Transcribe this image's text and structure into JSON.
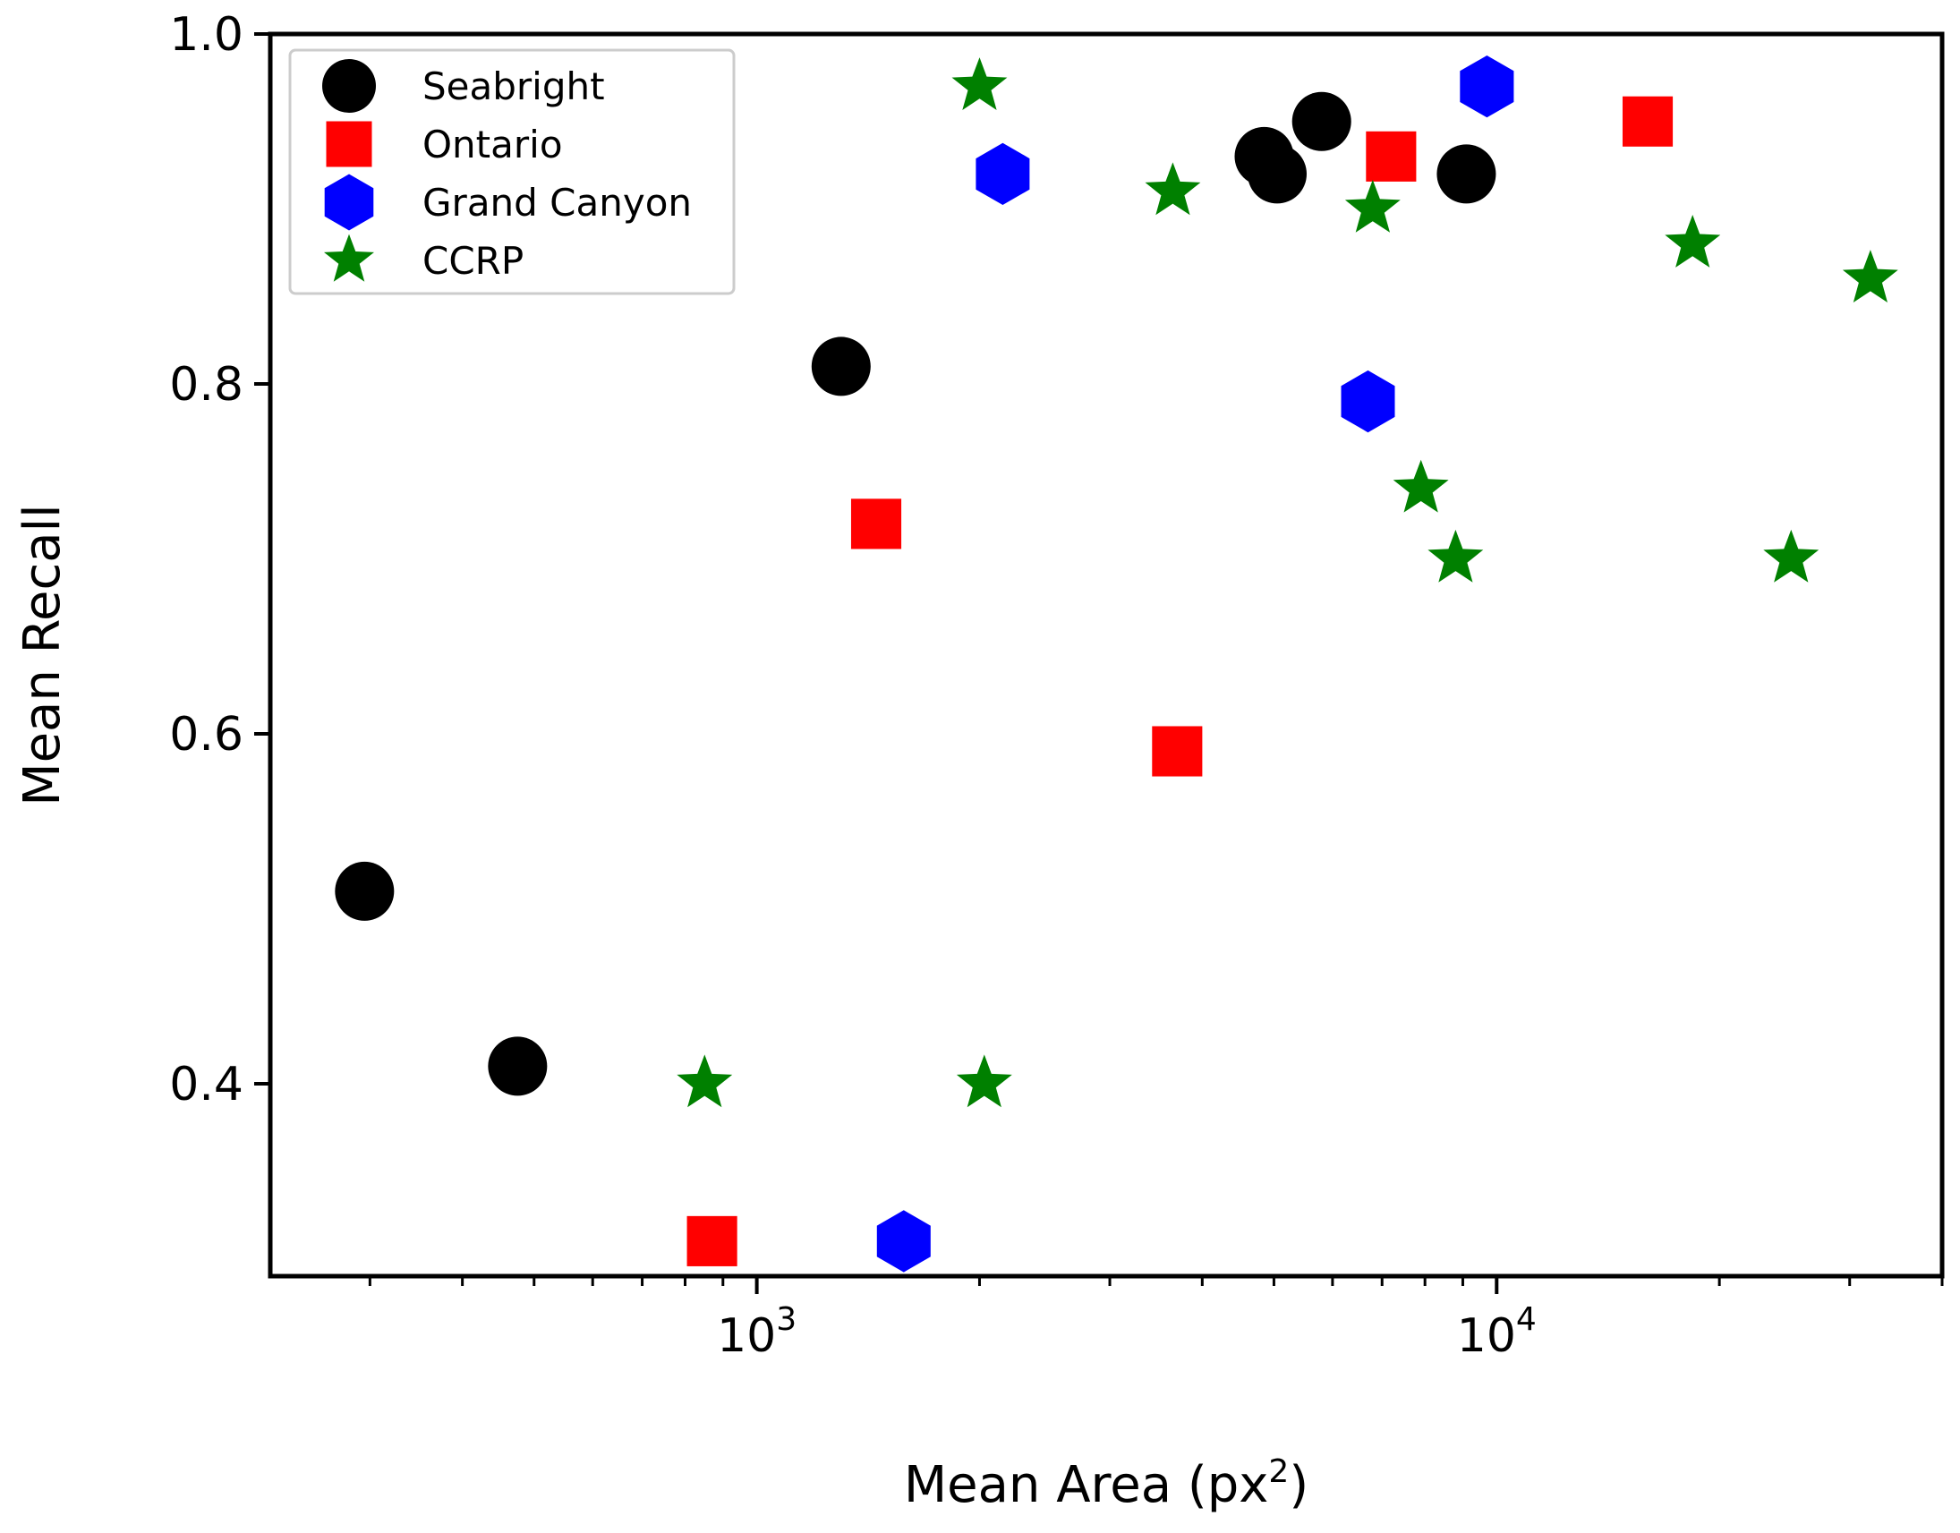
{
  "chart_data": {
    "type": "scatter",
    "title": "",
    "xlabel": "Mean Area (px",
    "xlabel_superscript": "2",
    "xlabel_suffix": ")",
    "ylabel": "Mean Recall",
    "xscale": "log",
    "xlim": [
      220,
      40000
    ],
    "ylim": [
      0.29,
      1.0
    ],
    "x_major_ticks": [
      {
        "value": 1000,
        "base": "10",
        "exp": "3"
      },
      {
        "value": 10000,
        "base": "10",
        "exp": "4"
      }
    ],
    "y_ticks": [
      {
        "value": 0.4,
        "label": "0.4"
      },
      {
        "value": 0.6,
        "label": "0.6"
      },
      {
        "value": 0.8,
        "label": "0.8"
      },
      {
        "value": 1.0,
        "label": "1.0"
      }
    ],
    "grid": false,
    "legend_position": "top-left",
    "series": [
      {
        "name": "Seabright",
        "marker": "circle",
        "color": "#000000",
        "points": [
          {
            "x": 295,
            "y": 0.51
          },
          {
            "x": 475,
            "y": 0.41
          },
          {
            "x": 1300,
            "y": 0.81
          },
          {
            "x": 4850,
            "y": 0.93
          },
          {
            "x": 5050,
            "y": 0.92
          },
          {
            "x": 5800,
            "y": 0.95
          },
          {
            "x": 9100,
            "y": 0.92
          }
        ]
      },
      {
        "name": "Ontario",
        "marker": "square",
        "color": "#ff0000",
        "points": [
          {
            "x": 870,
            "y": 0.31
          },
          {
            "x": 1450,
            "y": 0.72
          },
          {
            "x": 3700,
            "y": 0.59
          },
          {
            "x": 7200,
            "y": 0.93
          },
          {
            "x": 16000,
            "y": 0.95
          }
        ]
      },
      {
        "name": "Grand Canyon",
        "marker": "hexagon",
        "color": "#0000ff",
        "points": [
          {
            "x": 1580,
            "y": 0.31
          },
          {
            "x": 2150,
            "y": 0.92
          },
          {
            "x": 6700,
            "y": 0.79
          },
          {
            "x": 9700,
            "y": 0.97
          }
        ]
      },
      {
        "name": "CCRP",
        "marker": "star",
        "color": "#008000",
        "points": [
          {
            "x": 850,
            "y": 0.4
          },
          {
            "x": 2000,
            "y": 0.97
          },
          {
            "x": 2030,
            "y": 0.4
          },
          {
            "x": 3650,
            "y": 0.91
          },
          {
            "x": 6800,
            "y": 0.9
          },
          {
            "x": 7900,
            "y": 0.74
          },
          {
            "x": 8800,
            "y": 0.7
          },
          {
            "x": 18400,
            "y": 0.88
          },
          {
            "x": 25000,
            "y": 0.7
          },
          {
            "x": 32000,
            "y": 0.86
          }
        ]
      }
    ]
  }
}
